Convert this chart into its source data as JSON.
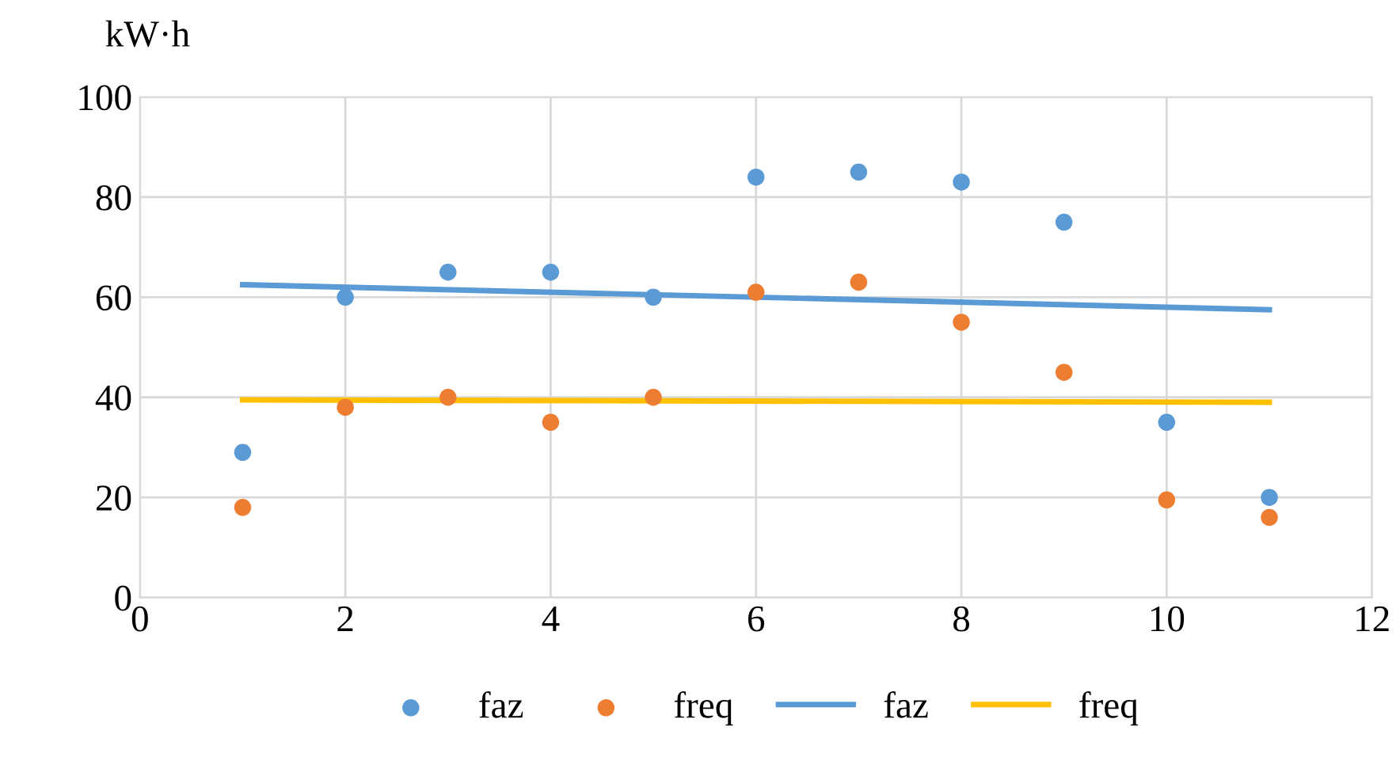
{
  "chart_data": {
    "type": "scatter",
    "ylabel": "kW·h",
    "xlim": [
      0,
      12
    ],
    "xticks": [
      0,
      2,
      4,
      6,
      8,
      10,
      12
    ],
    "ylim": [
      0,
      100
    ],
    "yticks": [
      0,
      20,
      40,
      60,
      80,
      100
    ],
    "grid": true,
    "legend": "bottom",
    "series": [
      {
        "name": "faz",
        "marker": "circle",
        "color": "#5b9bd5",
        "x": [
          1,
          2,
          3,
          4,
          5,
          6,
          7,
          8,
          9,
          10,
          11
        ],
        "values": [
          29,
          60,
          65,
          65,
          60,
          84,
          85,
          83,
          75,
          35,
          20
        ]
      },
      {
        "name": "freq",
        "marker": "circle",
        "color": "#ed7d31",
        "x": [
          1,
          2,
          3,
          4,
          5,
          6,
          7,
          8,
          9,
          10,
          11
        ],
        "values": [
          18,
          38,
          40,
          35,
          40,
          61,
          63,
          55,
          45,
          19.5,
          16
        ]
      },
      {
        "name": "faz",
        "type": "line",
        "marker": "none",
        "color": "#5b9bd5",
        "x": [
          1,
          11
        ],
        "values": [
          62.5,
          57.5
        ]
      },
      {
        "name": "freq",
        "type": "line",
        "marker": "none",
        "color": "#ffc000",
        "x": [
          1,
          11
        ],
        "values": [
          39.5,
          39
        ]
      }
    ]
  }
}
